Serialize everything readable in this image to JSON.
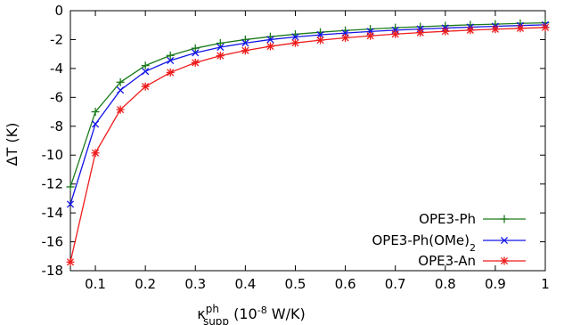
{
  "chart_data": {
    "type": "line",
    "xlabel": {
      "symbol": "κ",
      "sup": "ph",
      "sub": "supp",
      "unit_pre": " (10",
      "unit_exp": "-8",
      "unit_post": " W/K)"
    },
    "ylabel": "ΔT (K)",
    "xlim": [
      0.05,
      1.0
    ],
    "ylim": [
      -18,
      0
    ],
    "x_ticks": [
      0.1,
      0.2,
      0.3,
      0.4,
      0.5,
      0.6,
      0.7,
      0.8,
      0.9,
      1.0
    ],
    "x_tick_labels": [
      "0.1",
      "0.2",
      "0.3",
      "0.4",
      "0.5",
      "0.6",
      "0.7",
      "0.8",
      "0.9",
      "1"
    ],
    "y_ticks": [
      0,
      -2,
      -4,
      -6,
      -8,
      -10,
      -12,
      -14,
      -16,
      -18
    ],
    "y_tick_labels": [
      "0",
      "-2",
      "-4",
      "-6",
      "-8",
      "-10",
      "-12",
      "-14",
      "-16",
      "-18"
    ],
    "grid": false,
    "legend_position": "bottom-right",
    "x": [
      0.05,
      0.1,
      0.15,
      0.2,
      0.25,
      0.3,
      0.35,
      0.4,
      0.45,
      0.5,
      0.55,
      0.6,
      0.65,
      0.7,
      0.75,
      0.8,
      0.85,
      0.9,
      0.95,
      1.0
    ],
    "series": [
      {
        "name": "OPE3-Ph",
        "name_sub": "",
        "color": "#1a7a1a",
        "marker": "plus",
        "values": [
          -12.2,
          -7.0,
          -4.95,
          -3.8,
          -3.1,
          -2.6,
          -2.25,
          -2.0,
          -1.8,
          -1.63,
          -1.49,
          -1.37,
          -1.27,
          -1.18,
          -1.11,
          -1.04,
          -0.98,
          -0.93,
          -0.88,
          -0.84
        ]
      },
      {
        "name": "OPE3-Ph(OMe)",
        "name_sub": "2",
        "color": "#1414e6",
        "marker": "x",
        "values": [
          -13.4,
          -7.85,
          -5.5,
          -4.2,
          -3.45,
          -2.92,
          -2.53,
          -2.24,
          -2.0,
          -1.82,
          -1.67,
          -1.55,
          -1.44,
          -1.35,
          -1.27,
          -1.2,
          -1.14,
          -1.08,
          -1.03,
          -0.98
        ]
      },
      {
        "name": "OPE3-An",
        "name_sub": "",
        "color": "#ee1c1c",
        "marker": "star",
        "values": [
          -17.4,
          -9.85,
          -6.85,
          -5.25,
          -4.28,
          -3.6,
          -3.12,
          -2.76,
          -2.47,
          -2.23,
          -2.04,
          -1.88,
          -1.74,
          -1.62,
          -1.52,
          -1.43,
          -1.35,
          -1.28,
          -1.22,
          -1.16
        ]
      }
    ]
  }
}
